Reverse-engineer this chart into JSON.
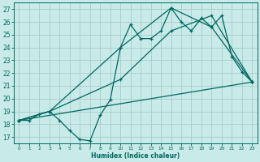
{
  "title": "",
  "xlabel": "Humidex (Indice chaleur)",
  "bg_color": "#c8eae8",
  "grid_color": "#a8ccc8",
  "line_color": "#006860",
  "xlim": [
    -0.5,
    23.5
  ],
  "ylim": [
    16.5,
    27.5
  ],
  "xticks": [
    0,
    1,
    2,
    3,
    4,
    5,
    6,
    7,
    8,
    9,
    10,
    11,
    12,
    13,
    14,
    15,
    16,
    17,
    18,
    19,
    20,
    21,
    22,
    23
  ],
  "yticks": [
    17,
    18,
    19,
    20,
    21,
    22,
    23,
    24,
    25,
    26,
    27
  ],
  "series": [
    {
      "x": [
        0,
        1,
        2,
        3,
        4,
        5,
        6,
        7,
        8,
        9,
        10,
        11,
        12,
        13,
        14,
        15,
        16,
        17,
        18,
        19,
        20,
        21,
        22,
        23
      ],
      "y": [
        18.3,
        18.3,
        18.8,
        19.0,
        18.3,
        17.5,
        16.8,
        16.7,
        18.7,
        19.9,
        24.0,
        25.8,
        24.7,
        24.7,
        25.3,
        27.1,
        26.0,
        25.3,
        26.3,
        25.6,
        26.5,
        23.3,
        22.1,
        21.3
      ]
    },
    {
      "x": [
        0,
        3,
        10,
        15,
        19,
        23
      ],
      "y": [
        18.3,
        19.0,
        24.0,
        27.1,
        25.6,
        21.3
      ]
    },
    {
      "x": [
        0,
        3,
        10,
        15,
        19,
        23
      ],
      "y": [
        18.3,
        19.0,
        21.5,
        25.3,
        26.5,
        21.3
      ]
    },
    {
      "x": [
        0,
        23
      ],
      "y": [
        18.3,
        21.3
      ]
    }
  ]
}
